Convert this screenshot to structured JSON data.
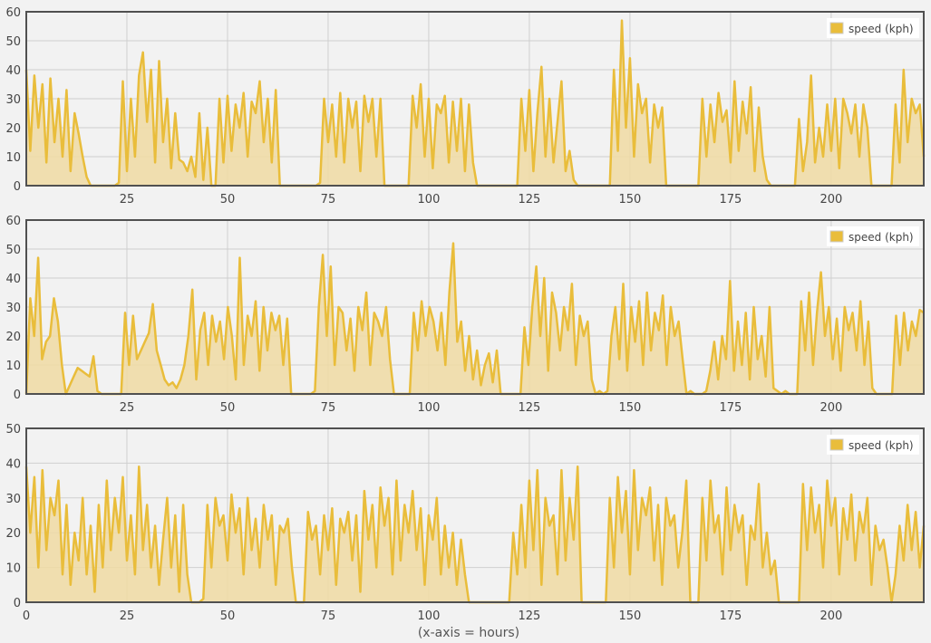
{
  "colors": {
    "line": "#e9bd3b",
    "fill": "#f0dba3",
    "grid": "#cfcfcf",
    "frame": "#505050",
    "background": "#f2f2f2"
  },
  "xlabel": "(x-axis = hours)",
  "chart_data": [
    {
      "type": "area",
      "legend": "speed (kph)",
      "legend_position": "top-right",
      "xlim": [
        0,
        223
      ],
      "ylim": [
        0,
        60
      ],
      "x_ticks": [
        25,
        50,
        75,
        100,
        125,
        150,
        175,
        200
      ],
      "y_ticks": [
        0,
        10,
        20,
        30,
        40,
        50,
        60
      ],
      "grid": true,
      "values": [
        40,
        12,
        38,
        20,
        35,
        8,
        37,
        15,
        30,
        10,
        33,
        5,
        25,
        18,
        10,
        3,
        0,
        0,
        0,
        0,
        0,
        0,
        0,
        1,
        36,
        5,
        30,
        10,
        38,
        46,
        22,
        40,
        8,
        43,
        15,
        30,
        6,
        25,
        9,
        8,
        5,
        10,
        3,
        25,
        2,
        20,
        0,
        0,
        30,
        8,
        31,
        12,
        28,
        20,
        32,
        10,
        29,
        25,
        36,
        15,
        30,
        8,
        33,
        0,
        0,
        0,
        0,
        0,
        0,
        0,
        0,
        0,
        0,
        1,
        30,
        15,
        28,
        10,
        32,
        8,
        30,
        20,
        29,
        5,
        31,
        22,
        30,
        10,
        30,
        0,
        0,
        0,
        0,
        0,
        0,
        0,
        31,
        20,
        35,
        10,
        30,
        6,
        28,
        25,
        31,
        8,
        29,
        12,
        30,
        5,
        28,
        8,
        0,
        0,
        0,
        0,
        0,
        0,
        0,
        0,
        0,
        0,
        0,
        30,
        12,
        33,
        5,
        25,
        41,
        10,
        30,
        8,
        22,
        36,
        5,
        12,
        2,
        0,
        0,
        0,
        0,
        0,
        0,
        0,
        0,
        0,
        40,
        12,
        57,
        20,
        44,
        10,
        35,
        25,
        30,
        8,
        28,
        20,
        27,
        0,
        0,
        0,
        0,
        0,
        0,
        0,
        0,
        0,
        30,
        10,
        28,
        15,
        32,
        22,
        26,
        8,
        36,
        12,
        29,
        18,
        34,
        5,
        27,
        10,
        2,
        0,
        0,
        0,
        0,
        0,
        0,
        0,
        23,
        5,
        15,
        38,
        8,
        20,
        10,
        28,
        12,
        30,
        6,
        30,
        25,
        18,
        28,
        10,
        28,
        20,
        0,
        0,
        0,
        0,
        0,
        0,
        28,
        8,
        40,
        15,
        30,
        25,
        28,
        10
      ]
    },
    {
      "type": "area",
      "legend": "speed (kph)",
      "legend_position": "top-right",
      "xlim": [
        0,
        223
      ],
      "ylim": [
        0,
        60
      ],
      "x_ticks": [
        25,
        50,
        75,
        100,
        125,
        150,
        175,
        200
      ],
      "y_ticks": [
        0,
        10,
        20,
        30,
        40,
        50,
        60
      ],
      "grid": true,
      "values": [
        0,
        33,
        20,
        47,
        12,
        18,
        20,
        33,
        25,
        10,
        0,
        3,
        6,
        9,
        8,
        7,
        6,
        13,
        1,
        0,
        0,
        0,
        0,
        0,
        0,
        28,
        10,
        27,
        12,
        15,
        18,
        21,
        31,
        15,
        10,
        5,
        3,
        4,
        2,
        5,
        10,
        20,
        36,
        5,
        22,
        28,
        10,
        27,
        18,
        25,
        12,
        30,
        20,
        5,
        47,
        10,
        27,
        20,
        32,
        8,
        30,
        15,
        28,
        22,
        27,
        10,
        26,
        0,
        0,
        0,
        0,
        0,
        0,
        1,
        30,
        48,
        20,
        44,
        10,
        30,
        28,
        15,
        26,
        8,
        30,
        22,
        35,
        10,
        28,
        25,
        20,
        30,
        12,
        0,
        0,
        0,
        0,
        0,
        28,
        15,
        32,
        20,
        30,
        25,
        15,
        28,
        10,
        35,
        52,
        18,
        25,
        8,
        20,
        5,
        15,
        3,
        10,
        14,
        4,
        15,
        0,
        0,
        0,
        0,
        0,
        0,
        23,
        10,
        30,
        44,
        20,
        40,
        8,
        35,
        28,
        15,
        30,
        22,
        38,
        10,
        27,
        20,
        25,
        5,
        0,
        1,
        0,
        1,
        20,
        30,
        12,
        38,
        8,
        30,
        18,
        32,
        10,
        35,
        15,
        28,
        22,
        34,
        10,
        30,
        20,
        25,
        12,
        0,
        1,
        0,
        0,
        0,
        1,
        8,
        18,
        5,
        20,
        12,
        39,
        8,
        25,
        10,
        28,
        5,
        30,
        12,
        20,
        6,
        30,
        2,
        1,
        0,
        1,
        0,
        0,
        0,
        32,
        15,
        35,
        10,
        28,
        42,
        20,
        30,
        12,
        26,
        8,
        30,
        22,
        28,
        15,
        32,
        10,
        25,
        2,
        0,
        0,
        0,
        0,
        0,
        27,
        10,
        28,
        15,
        25,
        20,
        29,
        28
      ]
    },
    {
      "type": "area",
      "legend": "speed (kph)",
      "legend_position": "top-right",
      "xlim": [
        0,
        223
      ],
      "ylim": [
        0,
        50
      ],
      "x_ticks": [
        0,
        25,
        50,
        75,
        100,
        125,
        150,
        175,
        200
      ],
      "y_ticks": [
        0,
        10,
        20,
        30,
        40,
        50
      ],
      "grid": true,
      "values": [
        39,
        20,
        36,
        10,
        38,
        15,
        30,
        25,
        35,
        8,
        28,
        5,
        20,
        12,
        30,
        8,
        22,
        3,
        28,
        10,
        35,
        15,
        30,
        20,
        36,
        12,
        25,
        8,
        39,
        15,
        28,
        10,
        22,
        5,
        18,
        30,
        10,
        25,
        3,
        28,
        8,
        0,
        0,
        0,
        1,
        28,
        10,
        30,
        22,
        25,
        12,
        31,
        20,
        27,
        8,
        30,
        15,
        24,
        10,
        28,
        18,
        25,
        5,
        22,
        20,
        24,
        10,
        0,
        0,
        0,
        26,
        18,
        22,
        8,
        25,
        15,
        27,
        5,
        24,
        20,
        26,
        12,
        25,
        3,
        32,
        18,
        28,
        10,
        33,
        22,
        30,
        8,
        35,
        12,
        28,
        20,
        32,
        15,
        27,
        5,
        25,
        18,
        30,
        8,
        22,
        10,
        20,
        5,
        18,
        8,
        0,
        0,
        0,
        0,
        0,
        0,
        0,
        0,
        0,
        0,
        0,
        20,
        8,
        28,
        10,
        35,
        15,
        38,
        5,
        30,
        22,
        25,
        8,
        38,
        12,
        30,
        18,
        39,
        0,
        0,
        0,
        0,
        0,
        0,
        0,
        30,
        10,
        36,
        20,
        32,
        8,
        38,
        15,
        30,
        25,
        33,
        12,
        28,
        5,
        30,
        22,
        25,
        10,
        20,
        35,
        0,
        0,
        0,
        30,
        12,
        35,
        20,
        25,
        8,
        33,
        15,
        28,
        20,
        25,
        5,
        22,
        18,
        34,
        10,
        20,
        8,
        12,
        0,
        0,
        0,
        0,
        0,
        0,
        34,
        15,
        33,
        20,
        28,
        10,
        35,
        22,
        30,
        8,
        27,
        18,
        31,
        12,
        26,
        20,
        30,
        5,
        22,
        15,
        18,
        10,
        0,
        8,
        22,
        12,
        28,
        15,
        26,
        10,
        22
      ]
    }
  ]
}
